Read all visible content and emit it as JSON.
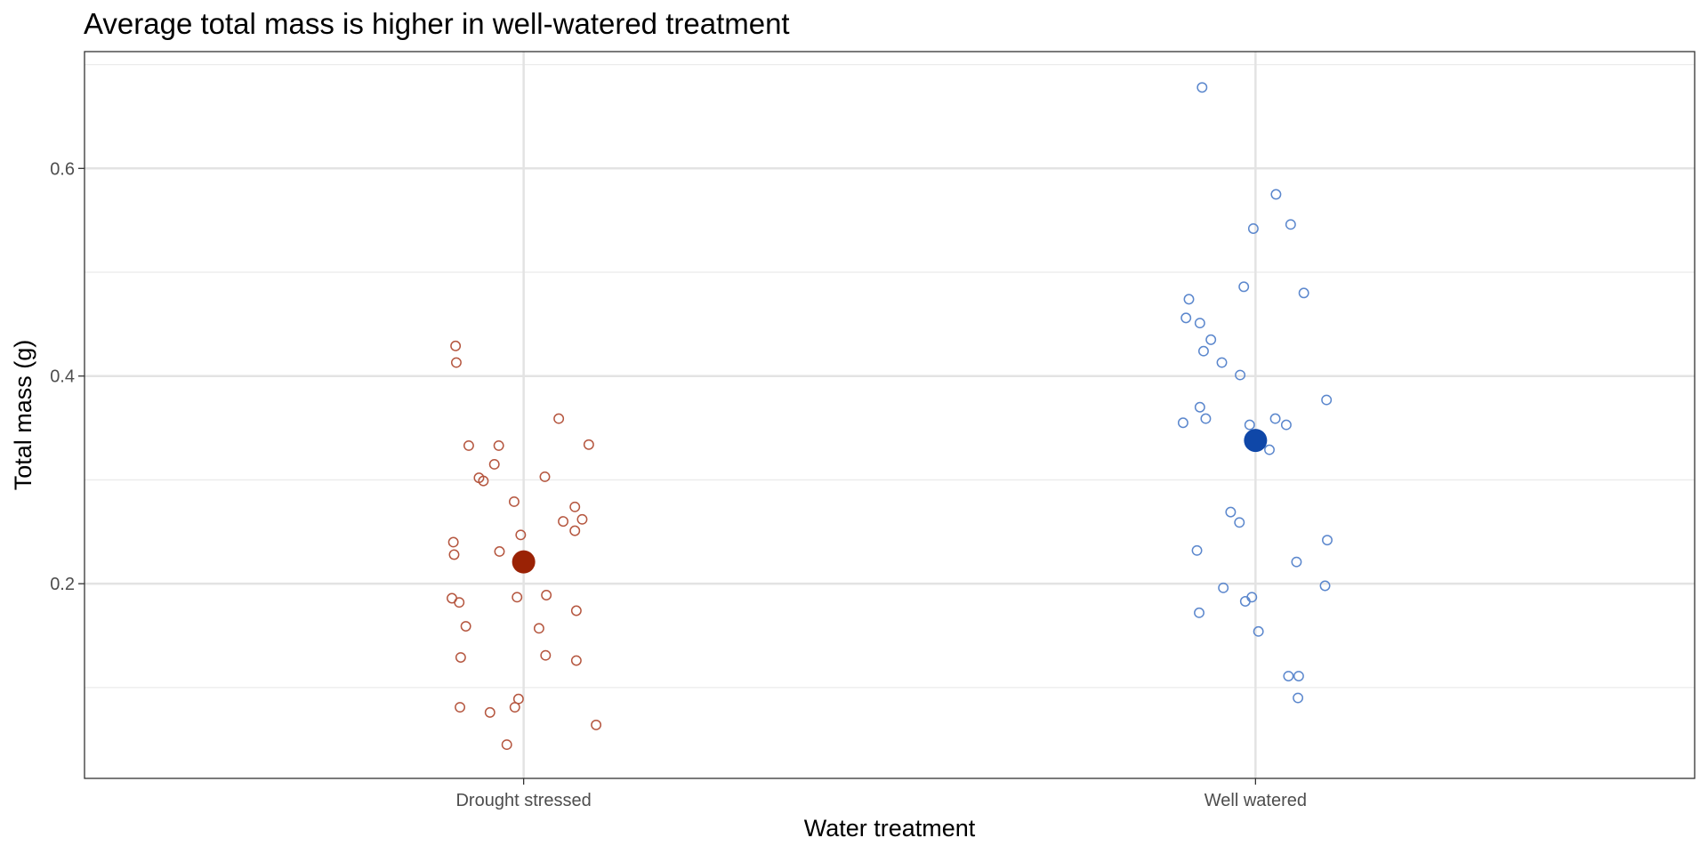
{
  "chart_data": {
    "type": "scatter",
    "title": "Average total mass is higher in well-watered treatment",
    "xlabel": "Water treatment",
    "ylabel": "Total mass (g)",
    "categories": [
      "Drought stressed",
      "Well watered"
    ],
    "ylim": [
      0.0125,
      0.7125
    ],
    "yticks": [
      0.2,
      0.4,
      0.6
    ],
    "ytick_labels": [
      "0.2",
      "0.4",
      "0.6"
    ],
    "grid": true,
    "legend": "none",
    "series": [
      {
        "category": "Drought stressed",
        "color": "#B5563F",
        "mean_color": "#9A2205",
        "mean": 0.221,
        "points": [
          {
            "x": -0.093,
            "y": 0.429
          },
          {
            "x": -0.092,
            "y": 0.413
          },
          {
            "x": 0.048,
            "y": 0.359
          },
          {
            "x": -0.075,
            "y": 0.333
          },
          {
            "x": -0.034,
            "y": 0.333
          },
          {
            "x": 0.089,
            "y": 0.334
          },
          {
            "x": -0.04,
            "y": 0.315
          },
          {
            "x": -0.061,
            "y": 0.302
          },
          {
            "x": -0.055,
            "y": 0.299
          },
          {
            "x": 0.029,
            "y": 0.303
          },
          {
            "x": -0.013,
            "y": 0.279
          },
          {
            "x": 0.07,
            "y": 0.274
          },
          {
            "x": 0.08,
            "y": 0.262
          },
          {
            "x": 0.054,
            "y": 0.26
          },
          {
            "x": 0.07,
            "y": 0.251
          },
          {
            "x": -0.004,
            "y": 0.247
          },
          {
            "x": -0.096,
            "y": 0.24
          },
          {
            "x": -0.095,
            "y": 0.228
          },
          {
            "x": -0.033,
            "y": 0.231
          },
          {
            "x": -0.098,
            "y": 0.186
          },
          {
            "x": -0.088,
            "y": 0.182
          },
          {
            "x": -0.009,
            "y": 0.187
          },
          {
            "x": 0.031,
            "y": 0.189
          },
          {
            "x": 0.072,
            "y": 0.174
          },
          {
            "x": -0.079,
            "y": 0.159
          },
          {
            "x": 0.021,
            "y": 0.157
          },
          {
            "x": -0.086,
            "y": 0.129
          },
          {
            "x": 0.03,
            "y": 0.131
          },
          {
            "x": 0.072,
            "y": 0.126
          },
          {
            "x": -0.007,
            "y": 0.089
          },
          {
            "x": -0.087,
            "y": 0.081
          },
          {
            "x": -0.046,
            "y": 0.076
          },
          {
            "x": -0.012,
            "y": 0.081
          },
          {
            "x": 0.099,
            "y": 0.064
          },
          {
            "x": -0.023,
            "y": 0.045
          }
        ]
      },
      {
        "category": "Well watered",
        "color": "#5B87CD",
        "mean_color": "#0F47A8",
        "mean": 0.338,
        "points": [
          {
            "x": -0.073,
            "y": 0.678
          },
          {
            "x": 0.028,
            "y": 0.575
          },
          {
            "x": -0.003,
            "y": 0.542
          },
          {
            "x": 0.048,
            "y": 0.546
          },
          {
            "x": -0.016,
            "y": 0.486
          },
          {
            "x": 0.066,
            "y": 0.48
          },
          {
            "x": -0.091,
            "y": 0.474
          },
          {
            "x": -0.095,
            "y": 0.456
          },
          {
            "x": -0.076,
            "y": 0.451
          },
          {
            "x": -0.061,
            "y": 0.435
          },
          {
            "x": -0.071,
            "y": 0.424
          },
          {
            "x": -0.046,
            "y": 0.413
          },
          {
            "x": -0.021,
            "y": 0.401
          },
          {
            "x": -0.076,
            "y": 0.37
          },
          {
            "x": -0.068,
            "y": 0.359
          },
          {
            "x": -0.099,
            "y": 0.355
          },
          {
            "x": -0.008,
            "y": 0.353
          },
          {
            "x": 0.027,
            "y": 0.359
          },
          {
            "x": 0.042,
            "y": 0.353
          },
          {
            "x": 0.097,
            "y": 0.377
          },
          {
            "x": 0.019,
            "y": 0.329
          },
          {
            "x": -0.034,
            "y": 0.269
          },
          {
            "x": -0.022,
            "y": 0.259
          },
          {
            "x": -0.08,
            "y": 0.232
          },
          {
            "x": 0.098,
            "y": 0.242
          },
          {
            "x": 0.056,
            "y": 0.221
          },
          {
            "x": 0.095,
            "y": 0.198
          },
          {
            "x": -0.044,
            "y": 0.196
          },
          {
            "x": -0.005,
            "y": 0.187
          },
          {
            "x": -0.014,
            "y": 0.183
          },
          {
            "x": -0.077,
            "y": 0.172
          },
          {
            "x": 0.004,
            "y": 0.154
          },
          {
            "x": 0.045,
            "y": 0.111
          },
          {
            "x": 0.059,
            "y": 0.111
          },
          {
            "x": 0.058,
            "y": 0.09
          }
        ]
      }
    ]
  }
}
